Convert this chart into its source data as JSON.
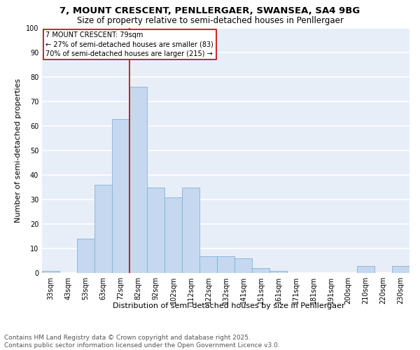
{
  "title_line1": "7, MOUNT CRESCENT, PENLLERGAER, SWANSEA, SA4 9BG",
  "title_line2": "Size of property relative to semi-detached houses in Penllergaer",
  "xlabel": "Distribution of semi-detached houses by size in Penllergaer",
  "ylabel": "Number of semi-detached properties",
  "categories": [
    "33sqm",
    "43sqm",
    "53sqm",
    "63sqm",
    "72sqm",
    "82sqm",
    "92sqm",
    "102sqm",
    "112sqm",
    "122sqm",
    "132sqm",
    "141sqm",
    "151sqm",
    "161sqm",
    "171sqm",
    "181sqm",
    "191sqm",
    "200sqm",
    "210sqm",
    "220sqm",
    "230sqm"
  ],
  "values": [
    1,
    0,
    14,
    36,
    63,
    76,
    35,
    31,
    35,
    7,
    7,
    6,
    2,
    1,
    0,
    0,
    0,
    0,
    3,
    0,
    3
  ],
  "bar_color": "#c5d8f0",
  "bar_edge_color": "#7fb3d8",
  "background_color": "#e8eef8",
  "grid_color": "#ffffff",
  "annotation_box_text": "7 MOUNT CRESCENT: 79sqm\n← 27% of semi-detached houses are smaller (83)\n70% of semi-detached houses are larger (215) →",
  "annotation_box_edge_color": "#cc0000",
  "vline_x_index": 4.5,
  "vline_color": "#cc0000",
  "ylim": [
    0,
    100
  ],
  "yticks": [
    0,
    10,
    20,
    30,
    40,
    50,
    60,
    70,
    80,
    90,
    100
  ],
  "footer_text": "Contains HM Land Registry data © Crown copyright and database right 2025.\nContains public sector information licensed under the Open Government Licence v3.0.",
  "title_fontsize": 9.5,
  "subtitle_fontsize": 8.5,
  "axis_label_fontsize": 8,
  "tick_fontsize": 7,
  "annotation_fontsize": 7,
  "footer_fontsize": 6.5
}
